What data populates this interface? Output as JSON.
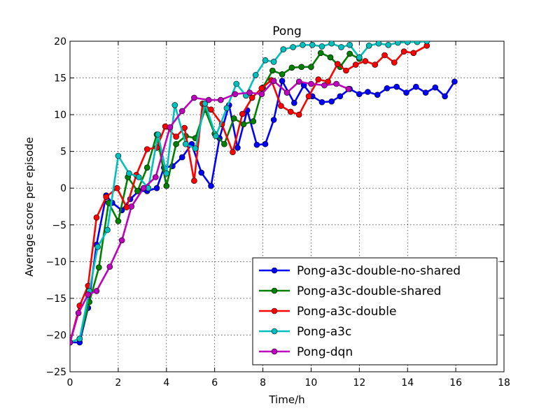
{
  "chart_data": {
    "type": "line",
    "title": "Pong",
    "xlabel": "Time/h",
    "ylabel": "Average score per episode",
    "xlim": [
      0,
      18
    ],
    "ylim": [
      -25,
      20
    ],
    "xticks": [
      0,
      2,
      4,
      6,
      8,
      10,
      12,
      14,
      16,
      18
    ],
    "yticks": [
      -25,
      -20,
      -15,
      -10,
      -5,
      0,
      5,
      10,
      15,
      20
    ],
    "xtick_labels": [
      "0",
      "2",
      "4",
      "6",
      "8",
      "10",
      "12",
      "14",
      "16",
      "18"
    ],
    "ytick_labels": [
      "−25",
      "−20",
      "−15",
      "−10",
      "−5",
      "0",
      "5",
      "10",
      "15",
      "20"
    ],
    "grid": true,
    "legend_position": "lower-right",
    "series": [
      {
        "name": "Pong-a3c-double-no-shared",
        "color": "#0000ff",
        "x": [
          0.0,
          0.4,
          0.75,
          1.1,
          1.5,
          1.75,
          2.15,
          2.5,
          2.85,
          3.2,
          3.6,
          3.9,
          4.25,
          4.65,
          5.05,
          5.45,
          5.85,
          6.2,
          6.6,
          6.95,
          7.35,
          7.75,
          8.1,
          8.45,
          8.8,
          9.3,
          9.7,
          10.05,
          10.45,
          10.85,
          11.2,
          11.6,
          12.0,
          12.35,
          12.75,
          13.15,
          13.55,
          13.95,
          14.35,
          14.75,
          15.15,
          15.55,
          15.95,
          16.35,
          16.75,
          17.1,
          17.45
        ],
        "y": [
          -21.0,
          -21.0,
          -16.3,
          -7.7,
          -1.0,
          -2.0,
          -3.0,
          -1.5,
          -0.4,
          -0.4,
          0.0,
          2.8,
          3.0,
          4.2,
          6.0,
          2.1,
          0.3,
          6.8,
          11.3,
          5.5,
          10.6,
          5.9,
          6.0,
          9.3,
          14.6,
          11.6,
          14.0,
          12.5,
          11.7,
          11.8,
          12.5,
          13.5,
          12.8,
          13.1,
          12.7,
          13.6,
          13.8,
          13.0,
          13.8,
          13.0,
          13.7,
          12.5,
          14.5,
          null,
          null,
          null,
          null
        ]
      },
      {
        "name": "Pong-a3c-double-shared",
        "color": "#008000",
        "x": [
          0.0,
          0.4,
          0.8,
          1.2,
          1.6,
          2.0,
          2.4,
          2.8,
          3.2,
          3.6,
          4.0,
          4.4,
          4.8,
          5.2,
          5.6,
          6.0,
          6.4,
          6.8,
          7.2,
          7.6,
          8.0,
          8.4,
          8.8,
          9.2,
          9.6,
          10.0,
          10.4,
          10.8,
          11.2,
          11.6,
          12.0,
          12.4,
          12.8,
          13.2
        ],
        "y": [
          -21.0,
          -20.5,
          -15.5,
          -10.8,
          -2.0,
          -4.5,
          1.5,
          -0.4,
          2.8,
          7.3,
          0.3,
          6.0,
          7.1,
          6.8,
          10.7,
          7.4,
          6.0,
          9.5,
          8.7,
          9.1,
          13.7,
          16.0,
          15.5,
          16.4,
          16.5,
          16.5,
          18.4,
          17.8,
          16.5,
          18.3,
          17.6,
          null,
          null,
          null
        ]
      },
      {
        "name": "Pong-a3c-double",
        "color": "#ff0000",
        "x": [
          0.0,
          0.4,
          0.75,
          1.1,
          1.5,
          1.95,
          2.35,
          2.75,
          3.2,
          3.6,
          3.95,
          4.4,
          4.75,
          5.15,
          5.5,
          5.85,
          6.3,
          6.75,
          7.15,
          7.55,
          7.95,
          8.35,
          8.75,
          9.15,
          9.5,
          9.9,
          10.3,
          10.7,
          11.1,
          11.45,
          11.85,
          12.25,
          12.65,
          13.05,
          13.45,
          13.85,
          14.25,
          14.8
        ],
        "y": [
          -21.0,
          -16.0,
          -13.3,
          -4.0,
          -1.2,
          0.0,
          -2.6,
          1.8,
          5.3,
          5.5,
          8.4,
          7.0,
          8.2,
          1.0,
          11.5,
          10.7,
          8.7,
          4.9,
          10.1,
          12.3,
          13.6,
          14.7,
          11.2,
          10.4,
          10.0,
          12.5,
          14.8,
          14.5,
          16.9,
          16.0,
          16.8,
          17.3,
          16.8,
          18.1,
          17.1,
          18.6,
          18.4,
          19.4
        ]
      },
      {
        "name": "Pong-a3c",
        "color": "#00bfbf",
        "x": [
          0.0,
          0.4,
          0.8,
          1.15,
          1.55,
          2.0,
          2.45,
          2.85,
          3.25,
          3.65,
          4.0,
          4.35,
          4.8,
          5.2,
          5.6,
          6.05,
          6.5,
          6.9,
          7.3,
          7.7,
          8.1,
          8.45,
          8.85,
          9.25,
          9.65,
          10.05,
          10.45,
          10.85,
          11.25,
          11.6,
          12.0,
          12.4,
          12.8,
          13.2,
          13.6,
          14.0,
          14.4,
          14.8
        ],
        "y": [
          -21.0,
          -20.5,
          -14.0,
          -8.0,
          -5.7,
          4.4,
          2.0,
          1.5,
          0.0,
          7.3,
          2.0,
          11.3,
          6.0,
          5.4,
          11.5,
          7.1,
          10.9,
          14.2,
          12.6,
          15.4,
          17.4,
          17.2,
          18.9,
          19.2,
          19.5,
          19.5,
          19.3,
          19.7,
          19.2,
          19.5,
          17.8,
          19.4,
          19.7,
          19.5,
          19.8,
          19.9,
          19.9,
          20.0
        ]
      },
      {
        "name": "Pong-dqn",
        "color": "#bf00bf",
        "x": [
          0.0,
          0.35,
          0.75,
          1.1,
          1.65,
          2.15,
          2.55,
          3.05,
          3.55,
          4.15,
          4.65,
          5.15,
          5.75,
          6.25,
          6.85,
          7.45,
          7.95,
          8.45,
          9.0,
          9.5,
          10.0,
          10.55,
          11.05,
          11.55
        ],
        "y": [
          -21.0,
          -17.0,
          -14.5,
          -14.0,
          -10.7,
          -7.1,
          -2.5,
          0.0,
          1.5,
          8.3,
          10.5,
          12.3,
          12.0,
          12.0,
          12.8,
          13.0,
          12.8,
          14.6,
          13.0,
          14.5,
          14.2,
          14.0,
          14.2,
          13.5
        ]
      }
    ]
  }
}
